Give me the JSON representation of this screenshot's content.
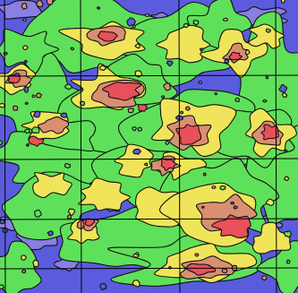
{
  "map": {
    "palette": {
      "background": "#ffffff",
      "violet": "#8a7fe2",
      "blue": "#5b5bde",
      "green": "#5fe05a",
      "yellow": "#f0e45a",
      "salmon": "#d98f72",
      "red": "#e8505a",
      "contour": "#111111"
    },
    "grid_lines": {
      "vertical_count": 4,
      "horizontal_count": 4,
      "color": "#000000"
    }
  }
}
